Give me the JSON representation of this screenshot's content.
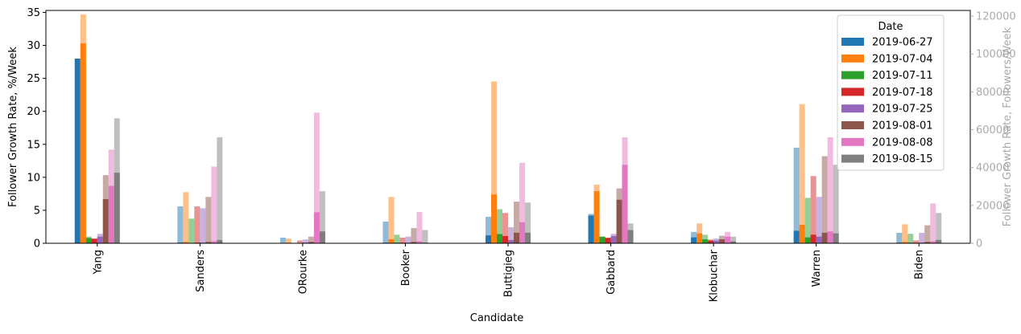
{
  "chart_data": {
    "type": "bar",
    "xlabel": "Candidate",
    "ylabel": "Follower Growth Rate, %/Week",
    "ylabel_right": "Follower Growth Rate, Followers/Week",
    "categories": [
      "Yang",
      "Sanders",
      "ORourke",
      "Booker",
      "Buttigieg",
      "Gabbard",
      "Klobuchar",
      "Warren",
      "Biden"
    ],
    "ylim": [
      0,
      35.3
    ],
    "ylim_right": [
      0,
      123000
    ],
    "yticks": [
      0,
      5,
      10,
      15,
      20,
      25,
      30,
      35
    ],
    "yticks_right": [
      0,
      20000,
      40000,
      60000,
      80000,
      100000,
      120000
    ],
    "legend": {
      "title": "Date",
      "placement": "top-right"
    },
    "series": [
      {
        "name": "2019-06-27",
        "color": "#1f77b4",
        "values": [
          28.0,
          0.1,
          0.0,
          0.1,
          1.2,
          4.2,
          0.9,
          1.9,
          0.1
        ],
        "values_right": [
          0,
          19500,
          3000,
          11500,
          14000,
          15500,
          6000,
          50500,
          5500
        ]
      },
      {
        "name": "2019-07-04",
        "color": "#ff7f0e",
        "values": [
          30.3,
          0.2,
          0.1,
          0.6,
          7.4,
          7.9,
          1.5,
          2.8,
          0.2
        ],
        "values_right": [
          121000,
          27000,
          2500,
          24500,
          85500,
          31000,
          10500,
          73500,
          10000
        ]
      },
      {
        "name": "2019-07-11",
        "color": "#2ca02c",
        "values": [
          0.8,
          0.0,
          0.0,
          0.1,
          1.4,
          1.0,
          0.6,
          0.9,
          0.1
        ],
        "values_right": [
          3500,
          13000,
          0,
          4500,
          18000,
          3500,
          4500,
          24000,
          5000
        ]
      },
      {
        "name": "2019-07-18",
        "color": "#d62728",
        "values": [
          0.7,
          0.1,
          0.0,
          0.1,
          1.1,
          0.8,
          0.4,
          1.3,
          0.1
        ],
        "values_right": [
          2000,
          19500,
          1500,
          3000,
          16000,
          3000,
          2000,
          35500,
          1500
        ]
      },
      {
        "name": "2019-07-25",
        "color": "#9467bd",
        "values": [
          1.0,
          0.1,
          0.1,
          0.1,
          0.5,
          1.1,
          0.4,
          1.0,
          0.1
        ],
        "values_right": [
          5000,
          18500,
          2000,
          3500,
          8500,
          5000,
          2500,
          24500,
          5500
        ]
      },
      {
        "name": "2019-08-01",
        "color": "#8c564b",
        "values": [
          6.7,
          0.2,
          0.2,
          0.2,
          1.6,
          6.6,
          0.6,
          1.6,
          0.2
        ],
        "values_right": [
          36000,
          24500,
          3500,
          8000,
          22000,
          29000,
          4000,
          46000,
          9500
        ]
      },
      {
        "name": "2019-08-08",
        "color": "#e377c2",
        "values": [
          8.7,
          0.3,
          4.7,
          0.3,
          3.2,
          11.9,
          1.0,
          1.8,
          0.3
        ],
        "values_right": [
          49500,
          40500,
          69000,
          16500,
          42500,
          56000,
          6000,
          56000,
          21000
        ]
      },
      {
        "name": "2019-08-15",
        "color": "#7f7f7f",
        "values": [
          10.7,
          0.5,
          1.8,
          0.1,
          1.6,
          2.0,
          0.3,
          1.5,
          0.5
        ],
        "values_right": [
          66000,
          56000,
          27500,
          7000,
          21500,
          10500,
          3500,
          41500,
          16000
        ]
      }
    ]
  }
}
